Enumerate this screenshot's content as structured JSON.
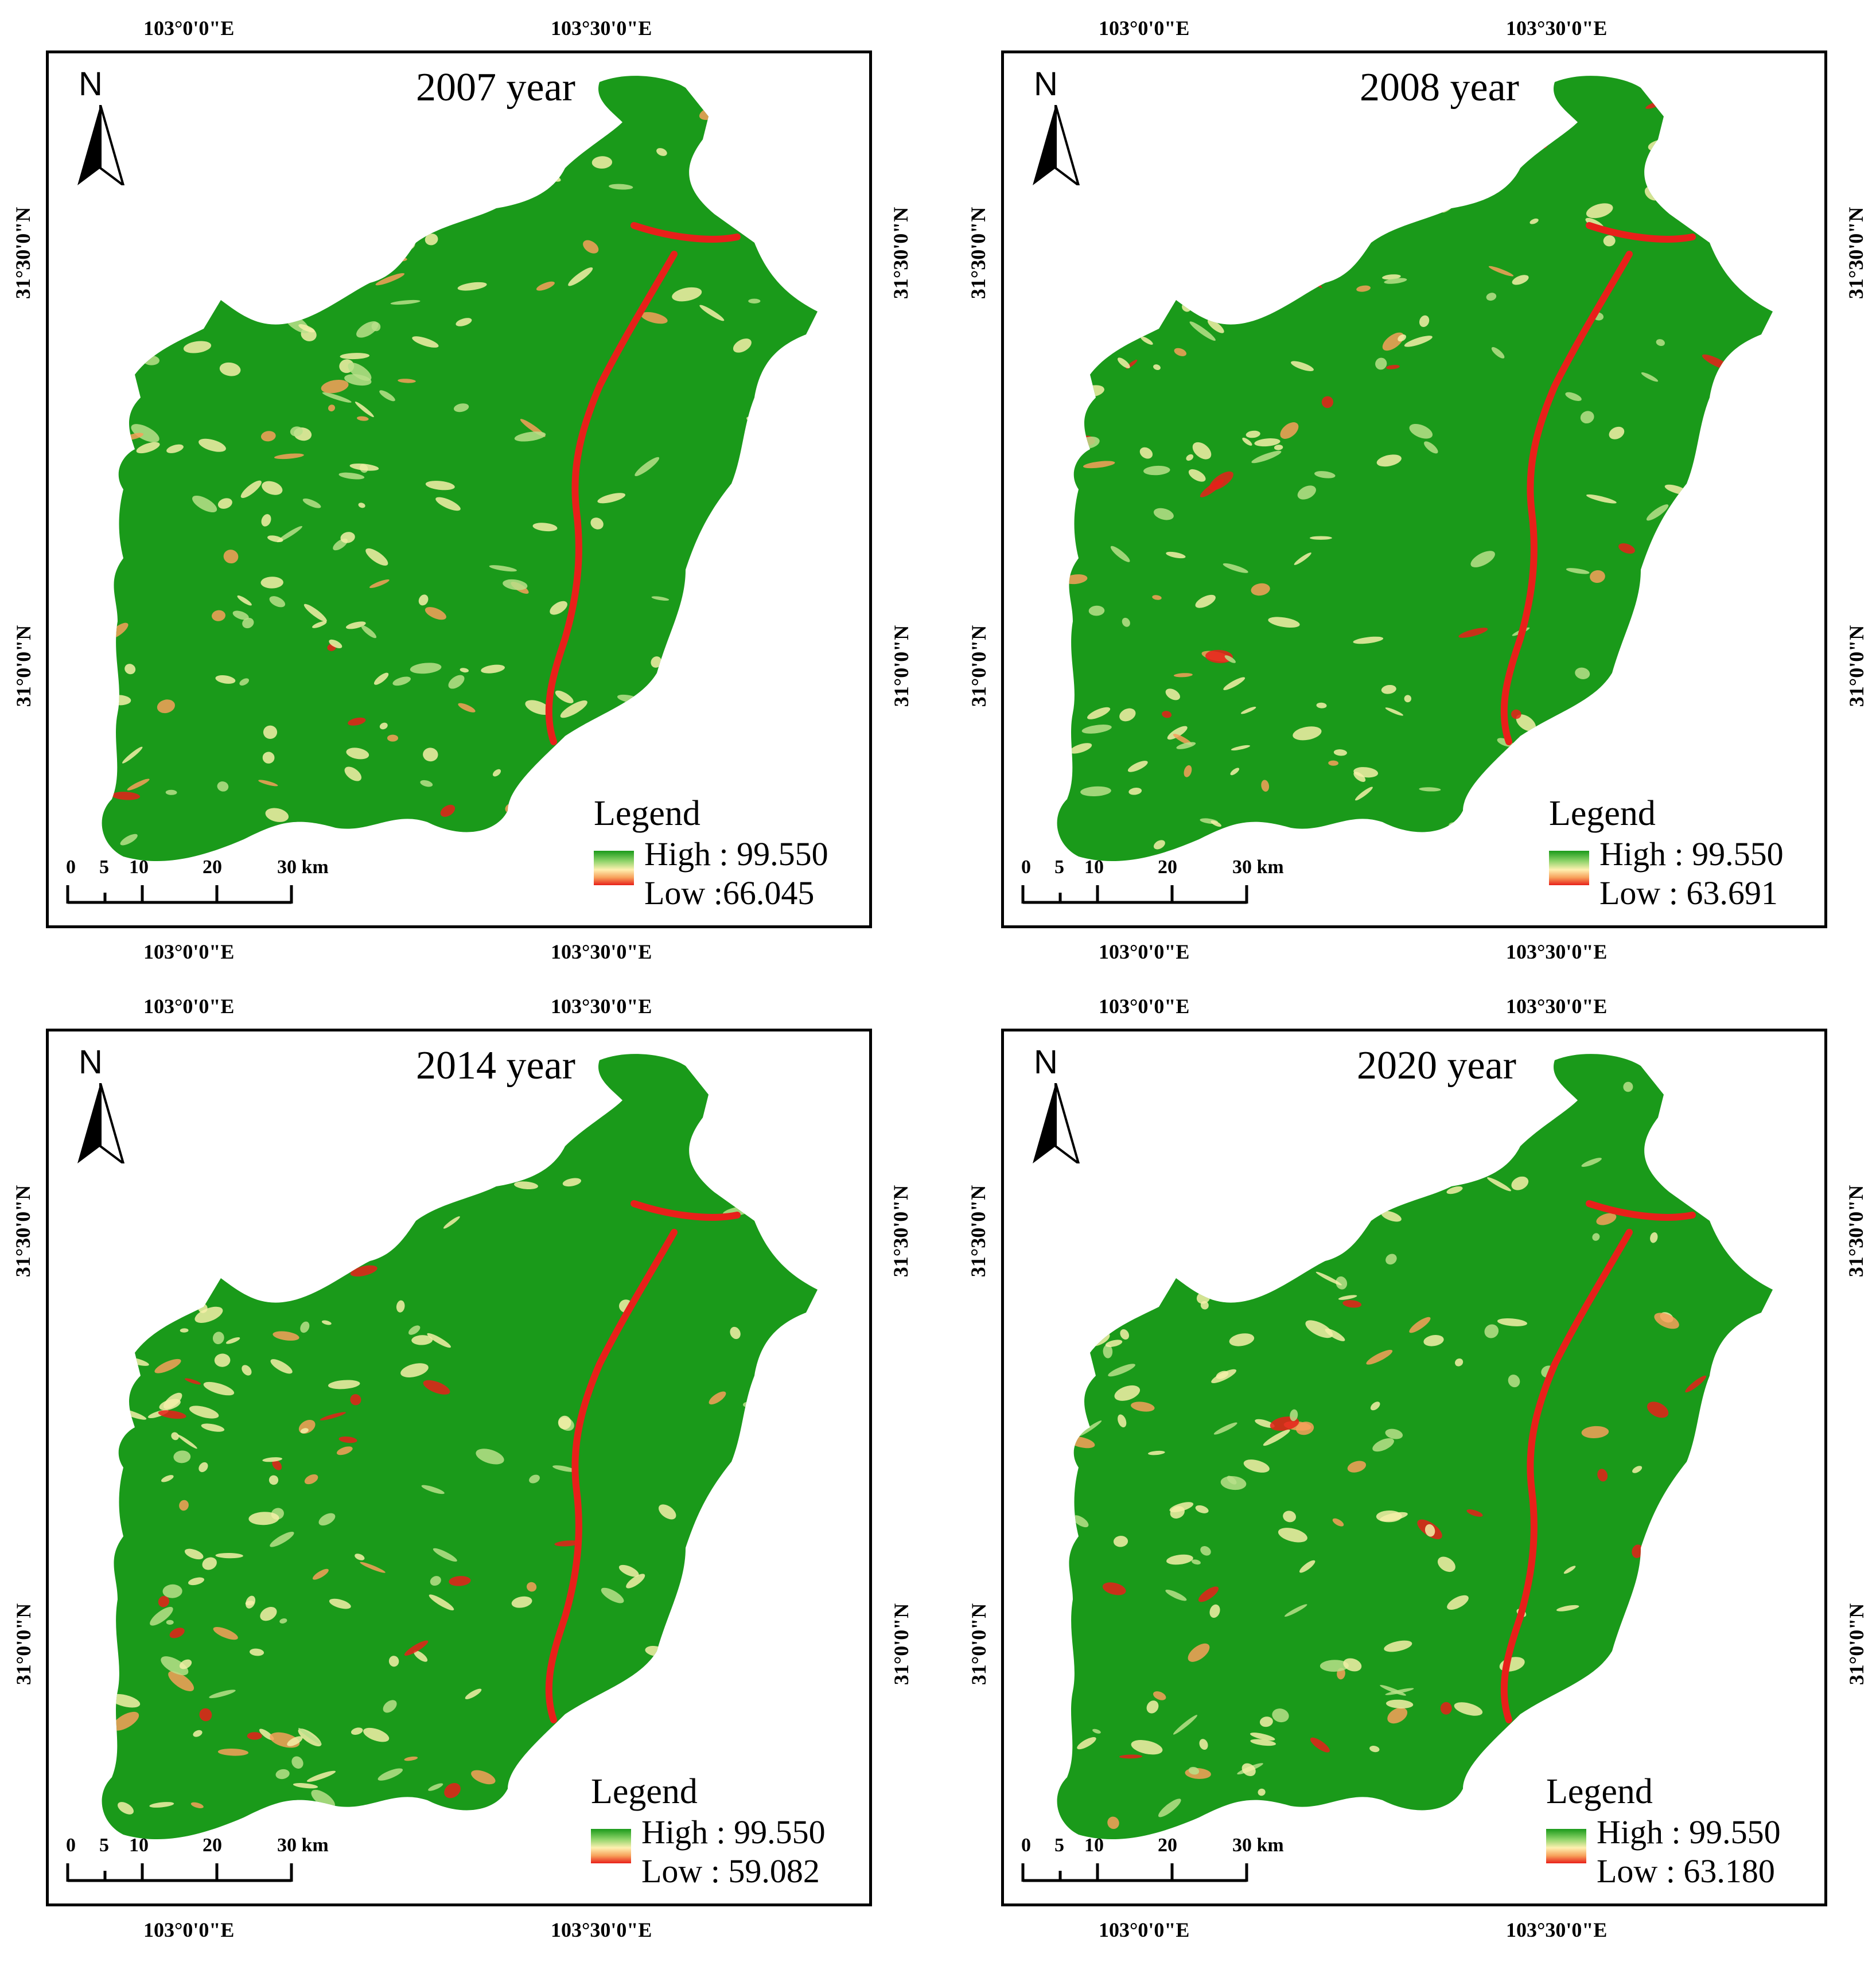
{
  "colors": {
    "high": "#1a9a1a",
    "mid": "#fff0b0",
    "low": "#e8201a"
  },
  "coords": {
    "lon_left": "103°0'0\"E",
    "lon_right": "103°30'0\"E",
    "lat_top": "31°30'0\"N",
    "lat_bottom": "31°0'0\"N"
  },
  "north_label": "N",
  "legend_title": "Legend",
  "scale": {
    "labels": [
      "0",
      "5",
      "10",
      "20",
      "30 km"
    ]
  },
  "panels": [
    {
      "title": "2007 year",
      "high": "High : 99.550",
      "low": "Low :66.045"
    },
    {
      "title": "2008 year",
      "high": "High : 99.550",
      "low": "Low : 63.691"
    },
    {
      "title": "2014 year",
      "high": "High : 99.550",
      "low": "Low : 59.082"
    },
    {
      "title": "2020 year",
      "high": "High : 99.550",
      "low": "Low : 63.180"
    }
  ]
}
